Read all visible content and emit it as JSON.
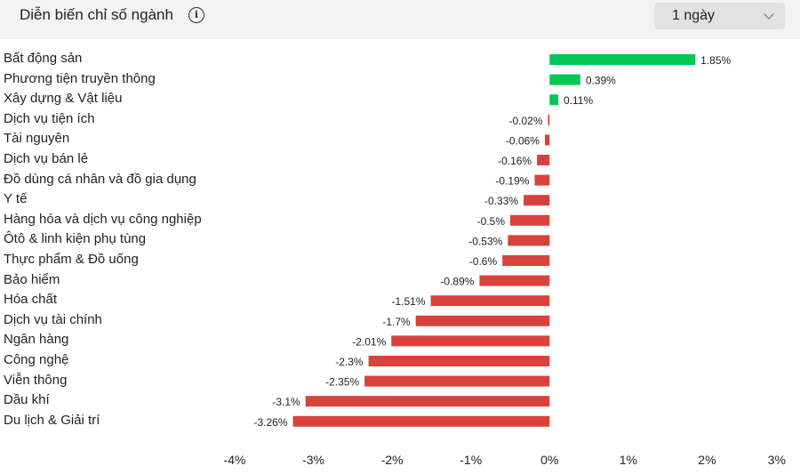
{
  "header": {
    "title": "Diễn biến chỉ số ngành",
    "period_selected": "1 ngày"
  },
  "colors": {
    "positive": "#00c853",
    "negative": "#d9423a"
  },
  "chart_data": {
    "type": "bar",
    "orientation": "horizontal",
    "categories": [
      "Bất động sản",
      "Phương tiện truyền thông",
      "Xây dựng & Vật liệu",
      "Dịch vụ tiện ích",
      "Tài nguyên",
      "Dịch vụ bán lẻ",
      "Đồ dùng cá nhân và đồ gia dụng",
      "Y tế",
      "Hàng hóa và dịch vụ công nghiệp",
      "Ôtô & linh kiện phụ tùng",
      "Thực phẩm & Đồ uống",
      "Bảo hiểm",
      "Hóa chất",
      "Dịch vụ tài chính",
      "Ngân hàng",
      "Công nghệ",
      "Viễn thông",
      "Dầu khí",
      "Du lịch & Giải trí"
    ],
    "values": [
      1.85,
      0.39,
      0.11,
      -0.02,
      -0.06,
      -0.16,
      -0.19,
      -0.33,
      -0.5,
      -0.53,
      -0.6,
      -0.89,
      -1.51,
      -1.7,
      -2.01,
      -2.3,
      -2.35,
      -3.1,
      -3.26
    ],
    "value_labels": [
      "1.85%",
      "0.39%",
      "0.11%",
      "-0.02%",
      "-0.06%",
      "-0.16%",
      "-0.19%",
      "-0.33%",
      "-0.5%",
      "-0.53%",
      "-0.6%",
      "-0.89%",
      "-1.51%",
      "-1.7%",
      "-2.01%",
      "-2.3%",
      "-2.35%",
      "-3.1%",
      "-3.26%"
    ],
    "xlim": [
      -4,
      3
    ],
    "xticks": [
      -4,
      -3,
      -2,
      -1,
      0,
      1,
      2,
      3
    ],
    "xtick_labels": [
      "-4%",
      "-3%",
      "-2%",
      "-1%",
      "0%",
      "1%",
      "2%",
      "3%"
    ],
    "grid": false,
    "legend": "none"
  }
}
